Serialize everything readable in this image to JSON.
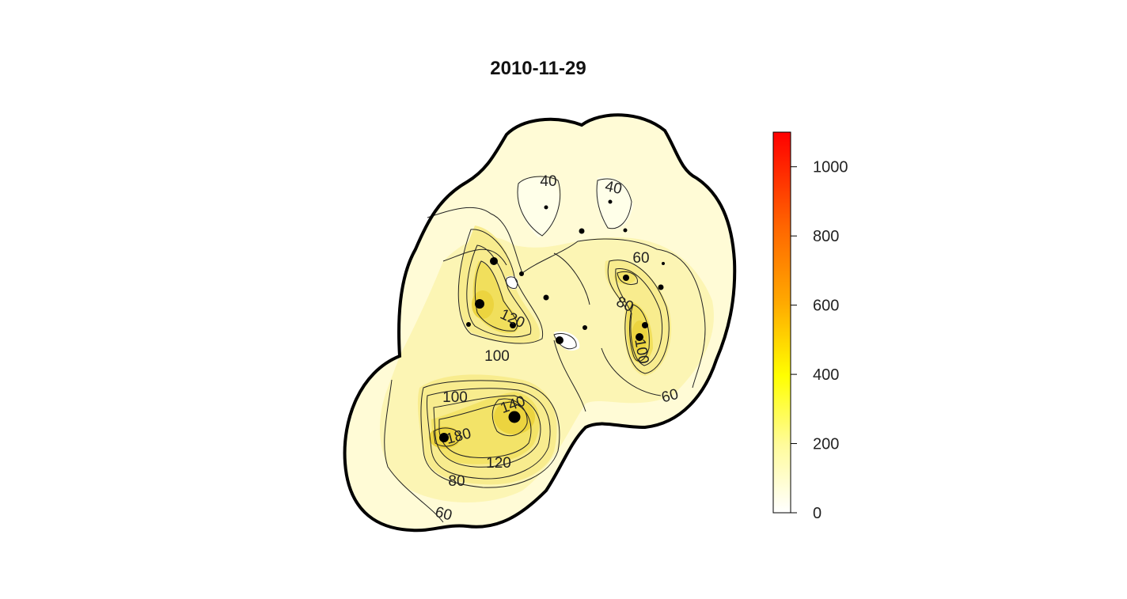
{
  "chart_data": {
    "type": "heatmap",
    "title": "2010-11-29",
    "xlabel": "",
    "ylabel": "",
    "colorbar": {
      "min": 0,
      "max": 1100,
      "ticks": [
        "0",
        "200",
        "400",
        "600",
        "800",
        "1000"
      ],
      "tick_values": [
        0,
        200,
        400,
        600,
        800,
        1000
      ],
      "colors": [
        "#ffffff",
        "#ffff00",
        "#ff9900",
        "#ff0000"
      ]
    },
    "contour_labels": [
      "40",
      "40",
      "60",
      "80",
      "100",
      "120",
      "100",
      "100",
      "140",
      "180",
      "120",
      "80",
      "60",
      "60"
    ],
    "contour_levels": [
      40,
      60,
      80,
      100,
      120,
      140,
      180
    ],
    "legend": "right"
  },
  "colors": {
    "outline": "#000000",
    "field_base": "#fffbd3",
    "field_mid": "#fcf4a6",
    "field_high": "#f3e25f"
  }
}
